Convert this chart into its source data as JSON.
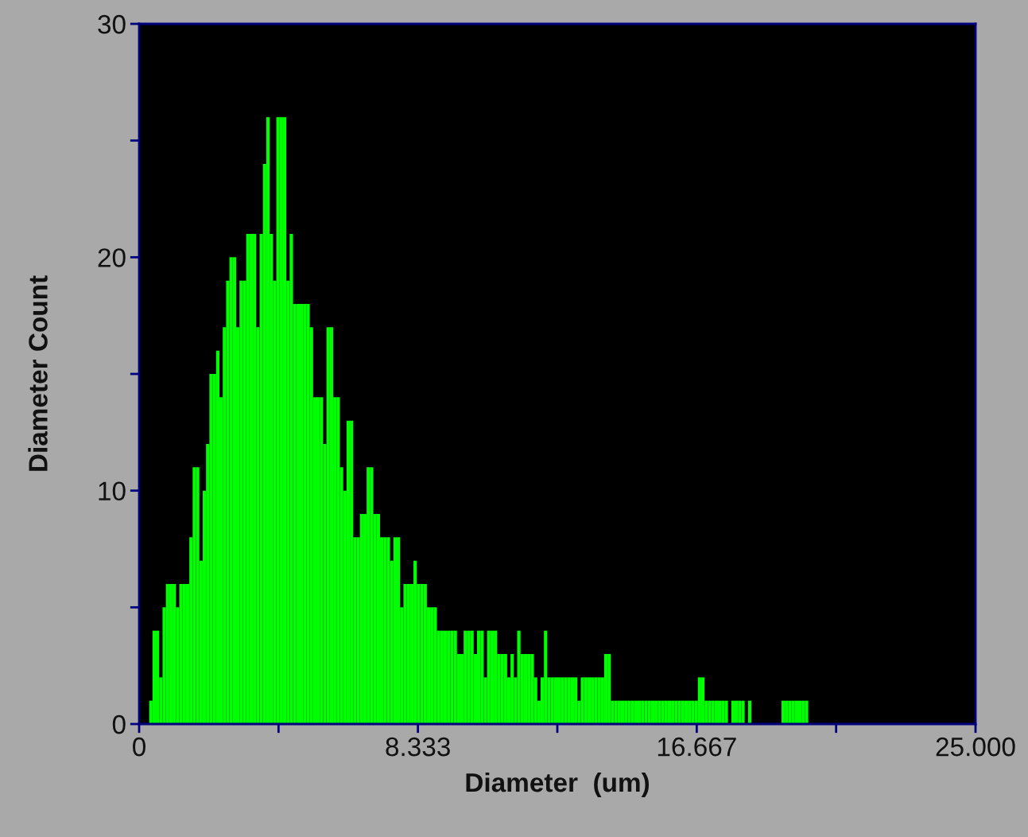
{
  "chart_data": {
    "type": "histogram",
    "xlabel": "Diameter  (um)",
    "ylabel": "Diameter Count",
    "color": "#00ff00",
    "bins": [
      0,
      0.1,
      0.2,
      0.3,
      0.4,
      0.5,
      0.6,
      0.7,
      0.8,
      0.9,
      1.0,
      1.1,
      1.2,
      1.3,
      1.4,
      1.5,
      1.6,
      1.7,
      1.8,
      1.9,
      2.0,
      2.1,
      2.2,
      2.3,
      2.4,
      2.5,
      2.6,
      2.7,
      2.8,
      2.9,
      3.0,
      3.1,
      3.2,
      3.3,
      3.4,
      3.5,
      3.6,
      3.7,
      3.8,
      3.9,
      4.0,
      4.1,
      4.2,
      4.3,
      4.4,
      4.5,
      4.6,
      4.7,
      4.8,
      4.9,
      5.0,
      5.1,
      5.2,
      5.3,
      5.4,
      5.5,
      5.6,
      5.7,
      5.8,
      5.9,
      6.0,
      6.1,
      6.2,
      6.3,
      6.4,
      6.5,
      6.6,
      6.7,
      6.8,
      6.9,
      7.0,
      7.1,
      7.2,
      7.3,
      7.4,
      7.5,
      7.6,
      7.7,
      7.8,
      7.9,
      8.0,
      8.1,
      8.2,
      8.3,
      8.4,
      8.5,
      8.6,
      8.7,
      8.8,
      8.9,
      9.0,
      9.1,
      9.2,
      9.3,
      9.4,
      9.5,
      9.6,
      9.7,
      9.8,
      9.9,
      10.0,
      10.1,
      10.2,
      10.3,
      10.4,
      10.5,
      10.6,
      10.7,
      10.8,
      10.9,
      11.0,
      11.1,
      11.2,
      11.3,
      11.4,
      11.5,
      11.6,
      11.7,
      11.8,
      11.9,
      12.0,
      12.1,
      12.2,
      12.3,
      12.4,
      12.5,
      12.6,
      12.7,
      12.8,
      12.9,
      13.0,
      13.1,
      13.2,
      13.3,
      13.4,
      13.5,
      13.6,
      13.7,
      13.8,
      13.9,
      14.0,
      14.1,
      14.2,
      14.3,
      14.4,
      14.5,
      14.6,
      14.7,
      14.8,
      14.9,
      15.0,
      15.1,
      15.2,
      15.3,
      15.4,
      15.5,
      15.6,
      15.7,
      15.8,
      15.9,
      16.0,
      16.1,
      16.2,
      16.3,
      16.4,
      16.5,
      16.6,
      16.7,
      16.8,
      16.9,
      17.0,
      17.1,
      17.2,
      17.3,
      17.4,
      17.5,
      17.6,
      17.7,
      17.8,
      17.9,
      18.0,
      18.1,
      18.2,
      18.3,
      18.4,
      18.5,
      18.6,
      18.7,
      18.8,
      18.9,
      19.0,
      19.1,
      19.2,
      19.3,
      19.4,
      19.5,
      19.6,
      19.7,
      19.8,
      19.9,
      20.0
    ],
    "values": [
      0,
      0,
      0,
      1,
      4,
      4,
      2,
      5,
      6,
      6,
      6,
      5,
      6,
      6,
      6,
      8,
      11,
      11,
      7,
      10,
      12,
      15,
      15,
      16,
      14,
      17,
      19,
      20,
      20,
      17,
      19,
      19,
      21,
      21,
      21,
      17,
      21,
      24,
      26,
      21,
      19,
      26,
      26,
      26,
      19,
      21,
      18,
      18,
      18,
      18,
      18,
      17,
      14,
      14,
      14,
      12,
      17,
      17,
      14,
      14,
      11,
      10,
      13,
      13,
      8,
      8,
      9,
      9,
      11,
      11,
      9,
      9,
      8,
      8,
      8,
      7,
      8,
      8,
      5,
      6,
      6,
      6,
      7,
      6,
      6,
      6,
      5,
      5,
      5,
      4,
      4,
      4,
      4,
      4,
      4,
      3,
      3,
      4,
      4,
      4,
      3,
      4,
      4,
      2,
      4,
      4,
      4,
      3,
      3,
      3,
      2,
      3,
      2,
      4,
      3,
      3,
      3,
      3,
      2,
      1,
      2,
      4,
      2,
      2,
      2,
      2,
      2,
      2,
      2,
      2,
      2,
      1,
      2,
      2,
      2,
      2,
      2,
      2,
      2,
      3,
      3,
      1,
      1,
      1,
      1,
      1,
      1,
      1,
      1,
      1,
      1,
      1,
      1,
      1,
      1,
      1,
      1,
      1,
      1,
      1,
      1,
      1,
      1,
      1,
      1,
      1,
      1,
      2,
      2,
      1,
      1,
      1,
      1,
      1,
      1,
      1,
      0,
      1,
      1,
      1,
      1,
      0,
      1,
      0,
      0,
      0,
      0,
      0,
      0,
      0,
      0,
      0,
      1,
      1,
      1,
      1,
      1,
      1,
      1,
      1
    ],
    "xlim": [
      0,
      25
    ],
    "ylim": [
      0,
      30
    ],
    "xticks": [
      0,
      {
        "value": 4.1667,
        "label": null
      },
      {
        "value": 8.333,
        "label": "8.333"
      },
      {
        "value": 12.5,
        "label": null
      },
      {
        "value": 16.667,
        "label": "16.667"
      },
      {
        "value": 20.833,
        "label": null
      },
      {
        "value": 25,
        "label": "25.000"
      }
    ],
    "yticks": [
      0,
      {
        "value": 5,
        "label": null
      },
      10,
      {
        "value": 15,
        "label": null
      },
      20,
      {
        "value": 25,
        "label": null
      },
      30
    ]
  }
}
